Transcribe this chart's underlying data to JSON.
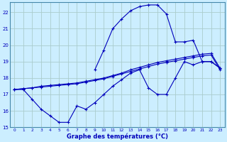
{
  "title": "Graphe des températures (°C)",
  "bg_color": "#cceeff",
  "grid_color": "#aacccc",
  "line_color": "#0000bb",
  "xlim": [
    -0.5,
    23.5
  ],
  "ylim": [
    15,
    22.6
  ],
  "yticks": [
    15,
    16,
    17,
    18,
    19,
    20,
    21,
    22
  ],
  "xticks": [
    0,
    1,
    2,
    3,
    4,
    5,
    6,
    7,
    8,
    9,
    10,
    11,
    12,
    13,
    14,
    15,
    16,
    17,
    18,
    19,
    20,
    21,
    22,
    23
  ],
  "line1_x": [
    0,
    1,
    2,
    3,
    4,
    5,
    6,
    7,
    8,
    9,
    10,
    11,
    12,
    13,
    14,
    15,
    16,
    17,
    18,
    19,
    20,
    21,
    22,
    23
  ],
  "line1_y": [
    17.3,
    17.3,
    16.7,
    16.1,
    15.7,
    15.3,
    15.3,
    16.3,
    16.1,
    16.5,
    17.0,
    17.5,
    17.9,
    18.3,
    18.5,
    17.4,
    17.0,
    17.0,
    18.0,
    19.0,
    18.8,
    19.0,
    19.0,
    18.6
  ],
  "line2_x": [
    0,
    1,
    2,
    3,
    4,
    5,
    6,
    7,
    8,
    9,
    10,
    11,
    12,
    13,
    14,
    15,
    16,
    17,
    18,
    19,
    20,
    21,
    22,
    23
  ],
  "line2_y": [
    17.3,
    17.35,
    17.4,
    17.5,
    17.55,
    17.6,
    17.65,
    17.7,
    17.8,
    17.9,
    18.0,
    18.15,
    18.3,
    18.5,
    18.65,
    18.8,
    18.95,
    19.05,
    19.15,
    19.25,
    19.35,
    19.45,
    19.5,
    18.6
  ],
  "line3_x": [
    0,
    1,
    2,
    3,
    4,
    5,
    6,
    7,
    8,
    9,
    10,
    11,
    12,
    13,
    14,
    15,
    16,
    17,
    18,
    19,
    20,
    21,
    22,
    23
  ],
  "line3_y": [
    17.3,
    17.35,
    17.4,
    17.45,
    17.5,
    17.55,
    17.6,
    17.65,
    17.75,
    17.85,
    17.95,
    18.1,
    18.25,
    18.4,
    18.55,
    18.7,
    18.85,
    18.95,
    19.05,
    19.15,
    19.25,
    19.35,
    19.4,
    18.5
  ],
  "line4_x": [
    9,
    10,
    11,
    12,
    13,
    14,
    15,
    16,
    17,
    18,
    19,
    20,
    21,
    22,
    23
  ],
  "line4_y": [
    18.5,
    19.7,
    21.0,
    21.6,
    22.1,
    22.35,
    22.45,
    22.45,
    21.9,
    20.2,
    20.2,
    20.3,
    19.0,
    19.0,
    18.6
  ]
}
